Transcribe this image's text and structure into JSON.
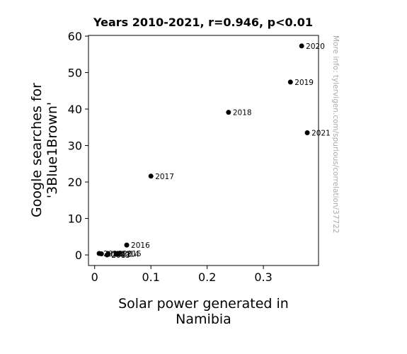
{
  "chart_data": {
    "type": "scatter",
    "title": "Years 2010-2021, r=0.946, p<0.01",
    "xlabel_lines": [
      "Solar power generated in",
      "Namibia"
    ],
    "ylabel_lines": [
      "Google searches for",
      "'3Blue1Brown'"
    ],
    "xlim": [
      -0.011,
      0.398
    ],
    "ylim": [
      -2.9,
      60.2
    ],
    "xticks": [
      0,
      0.1,
      0.2,
      0.3
    ],
    "xtick_labels": [
      "0",
      "0.1",
      "0.2",
      "0.3"
    ],
    "yticks": [
      0,
      10,
      20,
      30,
      40,
      50,
      60
    ],
    "ytick_labels": [
      "0",
      "10",
      "20",
      "30",
      "40",
      "50",
      "60"
    ],
    "grid": false,
    "point_color": "#000000",
    "points": [
      {
        "label": "2010",
        "x": 0.008,
        "y": 0.4
      },
      {
        "label": "2011",
        "x": 0.012,
        "y": 0.3
      },
      {
        "label": "2012",
        "x": 0.024,
        "y": 0.3
      },
      {
        "label": "2013",
        "x": 0.022,
        "y": 0.0
      },
      {
        "label": "2014",
        "x": 0.038,
        "y": 0.3
      },
      {
        "label": "2015",
        "x": 0.042,
        "y": 0.4
      },
      {
        "label": "2016",
        "x": 0.057,
        "y": 2.7
      },
      {
        "label": "2017",
        "x": 0.1,
        "y": 21.6
      },
      {
        "label": "2018",
        "x": 0.238,
        "y": 39.1
      },
      {
        "label": "2019",
        "x": 0.348,
        "y": 47.4
      },
      {
        "label": "2020",
        "x": 0.368,
        "y": 57.3
      },
      {
        "label": "2021",
        "x": 0.378,
        "y": 33.5
      }
    ]
  },
  "watermark": "More info: tylervigen.com/spurious/correlation/37722"
}
